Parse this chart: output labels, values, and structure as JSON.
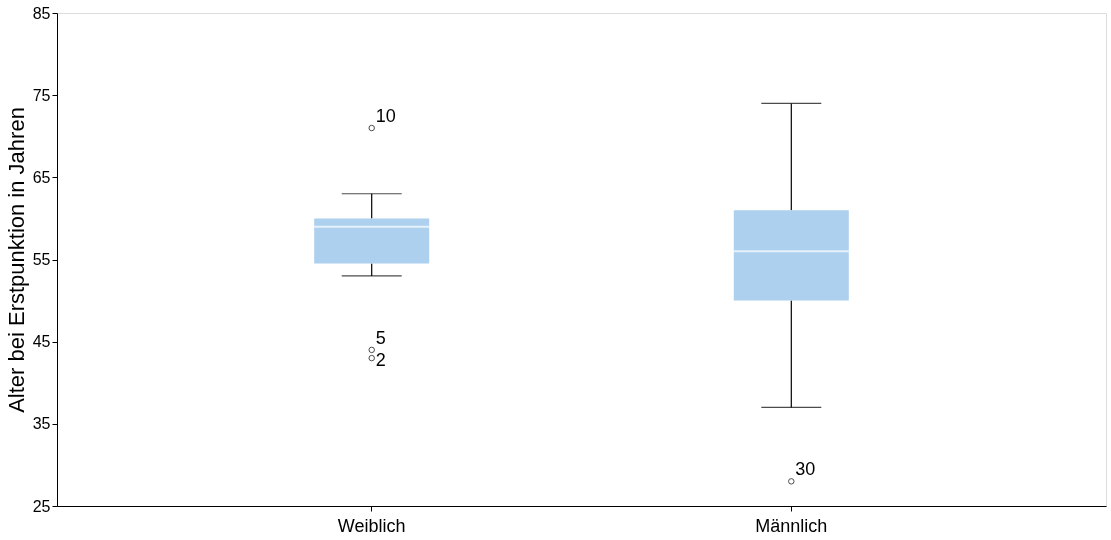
{
  "chart_data": {
    "type": "box",
    "ylabel": "Alter bei Erstpunktion in Jahren",
    "categories": [
      "Weiblich",
      "Männlich"
    ],
    "color": "#acd0ee",
    "boxes": [
      {
        "low": 53,
        "q1": 54.5,
        "median": 59,
        "q3": 60,
        "high": 63,
        "outliers": [
          71,
          44,
          43
        ]
      },
      {
        "low": 37,
        "q1": 50,
        "median": 56,
        "q3": 61,
        "high": 74,
        "outliers": [
          28
        ]
      }
    ],
    "ylim": [
      25,
      85
    ],
    "yticks": [
      25,
      35,
      45,
      55,
      65,
      75,
      85
    ],
    "grid": false,
    "annotations": [
      "10",
      "5",
      "2",
      "30"
    ]
  }
}
